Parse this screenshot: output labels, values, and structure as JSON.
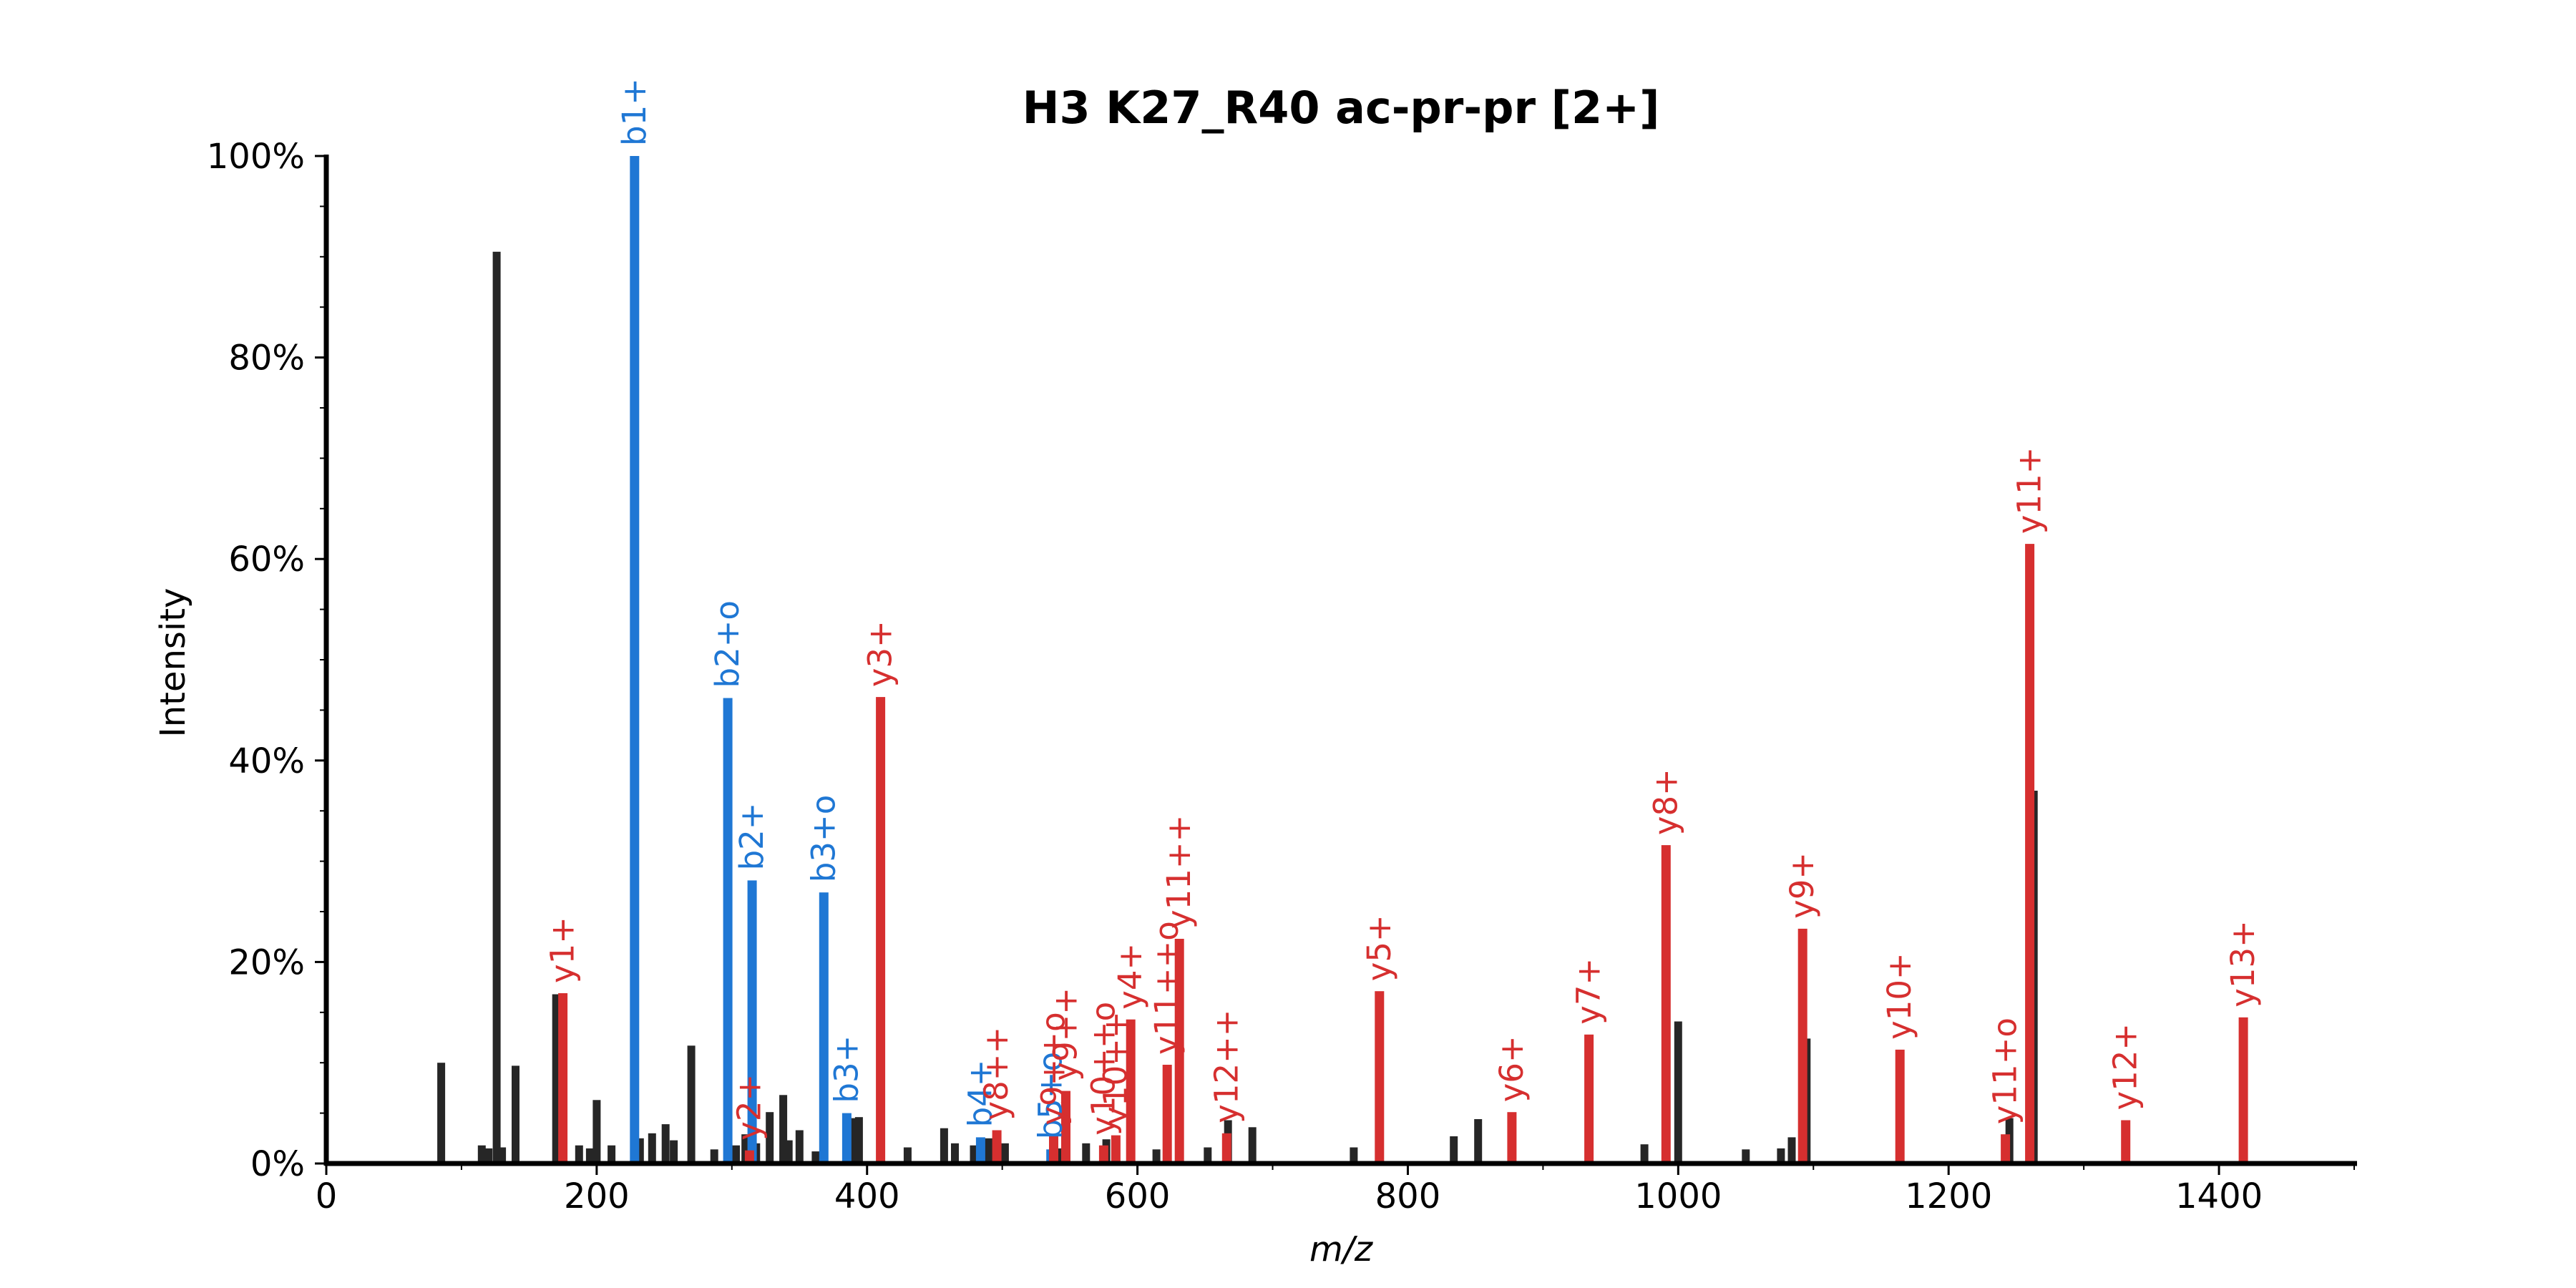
{
  "chart_data": {
    "type": "bar",
    "title": "H3 K27_R40 ac-pr-pr [2+]",
    "xlabel": "m/z",
    "ylabel": "Intensity",
    "xlim": [
      0,
      1500
    ],
    "ylim": [
      0,
      100
    ],
    "x_ticks": [
      {
        "value": 0,
        "label": "0"
      },
      {
        "value": 200,
        "label": "200"
      },
      {
        "value": 400,
        "label": "400"
      },
      {
        "value": 600,
        "label": "600"
      },
      {
        "value": 800,
        "label": "800"
      },
      {
        "value": 1000,
        "label": "1000"
      },
      {
        "value": 1200,
        "label": "1200"
      },
      {
        "value": 1400,
        "label": "1400"
      }
    ],
    "y_ticks": [
      {
        "value": 0,
        "label": "0%"
      },
      {
        "value": 20,
        "label": "20%"
      },
      {
        "value": 40,
        "label": "40%"
      },
      {
        "value": 60,
        "label": "60%"
      },
      {
        "value": 80,
        "label": "80%"
      },
      {
        "value": 100,
        "label": "100%"
      }
    ],
    "grid": false,
    "colors": {
      "b_ion": "#1f77d4",
      "y_ion": "#d62f2f",
      "unmatched": "#262626"
    },
    "series": [
      {
        "name": "unmatched",
        "points": [
          {
            "mz": 85,
            "y": 10
          },
          {
            "mz": 115,
            "y": 1.8
          },
          {
            "mz": 120,
            "y": 1.5
          },
          {
            "mz": 126,
            "y": 90.5
          },
          {
            "mz": 130,
            "y": 1.6
          },
          {
            "mz": 140,
            "y": 9.7
          },
          {
            "mz": 170,
            "y": 16.8
          },
          {
            "mz": 187,
            "y": 1.8
          },
          {
            "mz": 195,
            "y": 1.5
          },
          {
            "mz": 200,
            "y": 6.3
          },
          {
            "mz": 211,
            "y": 1.8
          },
          {
            "mz": 232,
            "y": 2.5
          },
          {
            "mz": 241,
            "y": 3.0
          },
          {
            "mz": 251,
            "y": 3.9
          },
          {
            "mz": 257,
            "y": 2.3
          },
          {
            "mz": 270,
            "y": 11.7
          },
          {
            "mz": 287,
            "y": 1.4
          },
          {
            "mz": 303,
            "y": 1.8
          },
          {
            "mz": 310,
            "y": 2.9
          },
          {
            "mz": 318,
            "y": 2.0
          },
          {
            "mz": 328,
            "y": 5.1
          },
          {
            "mz": 338,
            "y": 6.8
          },
          {
            "mz": 342,
            "y": 2.3
          },
          {
            "mz": 350,
            "y": 3.3
          },
          {
            "mz": 362,
            "y": 1.2
          },
          {
            "mz": 389,
            "y": 4.5
          },
          {
            "mz": 394,
            "y": 4.6
          },
          {
            "mz": 430,
            "y": 1.6
          },
          {
            "mz": 457,
            "y": 3.5
          },
          {
            "mz": 465,
            "y": 2.0
          },
          {
            "mz": 479,
            "y": 1.8
          },
          {
            "mz": 490,
            "y": 2.5
          },
          {
            "mz": 502,
            "y": 2.0
          },
          {
            "mz": 541,
            "y": 1.5
          },
          {
            "mz": 562,
            "y": 2.0
          },
          {
            "mz": 577,
            "y": 2.4
          },
          {
            "mz": 614,
            "y": 1.4
          },
          {
            "mz": 652,
            "y": 1.6
          },
          {
            "mz": 667,
            "y": 4.3
          },
          {
            "mz": 685,
            "y": 3.6
          },
          {
            "mz": 760,
            "y": 1.6
          },
          {
            "mz": 834,
            "y": 2.7
          },
          {
            "mz": 852,
            "y": 4.4
          },
          {
            "mz": 975,
            "y": 1.9
          },
          {
            "mz": 1000,
            "y": 14.1
          },
          {
            "mz": 1050,
            "y": 1.4
          },
          {
            "mz": 1076,
            "y": 1.5
          },
          {
            "mz": 1084,
            "y": 2.6
          },
          {
            "mz": 1095,
            "y": 12.4
          },
          {
            "mz": 1245,
            "y": 4.5
          },
          {
            "mz": 1263,
            "y": 37
          }
        ]
      },
      {
        "name": "b ions",
        "points": [
          {
            "mz": 228,
            "y": 100,
            "label": "b1+"
          },
          {
            "mz": 297,
            "y": 46.2,
            "label": "b2+o"
          },
          {
            "mz": 315,
            "y": 28.1,
            "label": "b2+"
          },
          {
            "mz": 368,
            "y": 26.9,
            "label": "b3+o"
          },
          {
            "mz": 385,
            "y": 5.0,
            "label": "b3+"
          },
          {
            "mz": 484,
            "y": 2.6,
            "label": "b4+"
          },
          {
            "mz": 536,
            "y": 1.4,
            "label": "b5+o"
          }
        ]
      },
      {
        "name": "y ions",
        "points": [
          {
            "mz": 175,
            "y": 16.9,
            "label": "y1+"
          },
          {
            "mz": 313,
            "y": 1.3,
            "label": "y2+"
          },
          {
            "mz": 410,
            "y": 46.3,
            "label": "y3+"
          },
          {
            "mz": 496,
            "y": 3.3,
            "label": "y8++"
          },
          {
            "mz": 538,
            "y": 2.8,
            "label": "y9++o"
          },
          {
            "mz": 547,
            "y": 7.2,
            "label": "y9++"
          },
          {
            "mz": 575,
            "y": 1.8,
            "label": "y10++o"
          },
          {
            "mz": 584,
            "y": 2.8,
            "label": "y10++"
          },
          {
            "mz": 595,
            "y": 14.3,
            "label": "y4+"
          },
          {
            "mz": 622,
            "y": 9.8,
            "label": "y11++o"
          },
          {
            "mz": 631,
            "y": 22.3,
            "label": "y11++"
          },
          {
            "mz": 666,
            "y": 3.0,
            "label": "y12++"
          },
          {
            "mz": 779,
            "y": 17.1,
            "label": "y5+"
          },
          {
            "mz": 877,
            "y": 5.1,
            "label": "y6+"
          },
          {
            "mz": 934,
            "y": 12.8,
            "label": "y7+"
          },
          {
            "mz": 991,
            "y": 31.6,
            "label": "y8+"
          },
          {
            "mz": 1092,
            "y": 23.3,
            "label": "y9+"
          },
          {
            "mz": 1164,
            "y": 11.3,
            "label": "y10+"
          },
          {
            "mz": 1242,
            "y": 2.9,
            "label": "y11+o"
          },
          {
            "mz": 1260,
            "y": 61.5,
            "label": "y11+"
          },
          {
            "mz": 1331,
            "y": 4.3,
            "label": "y12+"
          },
          {
            "mz": 1418,
            "y": 14.5,
            "label": "y13+"
          }
        ]
      }
    ]
  }
}
